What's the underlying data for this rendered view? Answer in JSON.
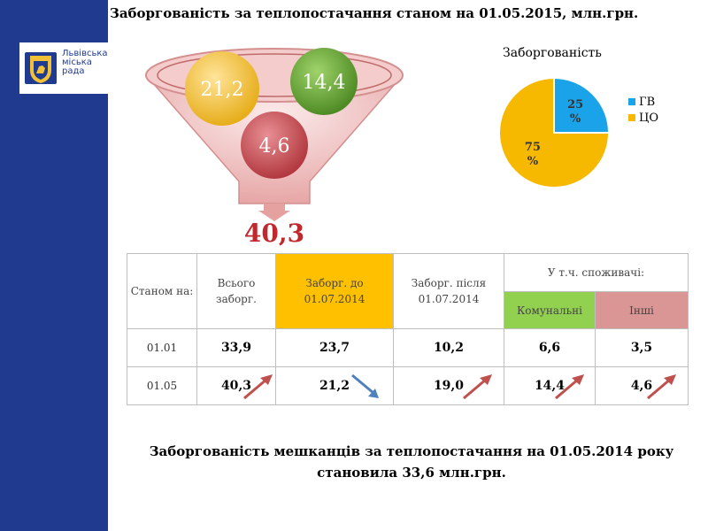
{
  "title": "Заборгованість за теплопостачання станом на 01.05.2015, млн.грн.",
  "logo": {
    "text": "Львівська\nміська\nрада"
  },
  "funnel": {
    "bubbles": [
      {
        "value": "21,2",
        "color": "#f2c037"
      },
      {
        "value": "14,4",
        "color": "#6aa43a"
      },
      {
        "value": "4,6",
        "color": "#c9545a"
      }
    ],
    "total": "40,3"
  },
  "chart_data": {
    "type": "pie",
    "title": "Заборгованість",
    "categories": [
      "ГВ",
      "ЦО"
    ],
    "values": [
      25,
      75
    ],
    "labels": [
      "25\n%",
      "75\n%"
    ],
    "colors": [
      "#1aa3e8",
      "#f7b800"
    ],
    "legend_position": "right"
  },
  "table": {
    "headers": {
      "as_of": "Станом на:",
      "total": "Всього заборг.",
      "before": "Заборг. до 01.07.2014",
      "after": "Заборг. після 01.07.2014",
      "consumers": "У т.ч. споживачі:",
      "communal": "Комунальні",
      "other": "Інші"
    },
    "rows": [
      {
        "date": "01.01",
        "total": "33,9",
        "before": "23,7",
        "after": "10,2",
        "communal": "6,6",
        "other": "3,5"
      },
      {
        "date": "01.05",
        "total": "40,3",
        "before": "21,2",
        "after": "19,0",
        "communal": "14,4",
        "other": "4,6"
      }
    ],
    "colors": {
      "before": "#ffc000",
      "communal": "#92d050",
      "other": "#d99694"
    }
  },
  "bottom_text": "Заборгованість мешканців за теплопостачання на 01.05.2014 року становила 33,6 млн.грн."
}
